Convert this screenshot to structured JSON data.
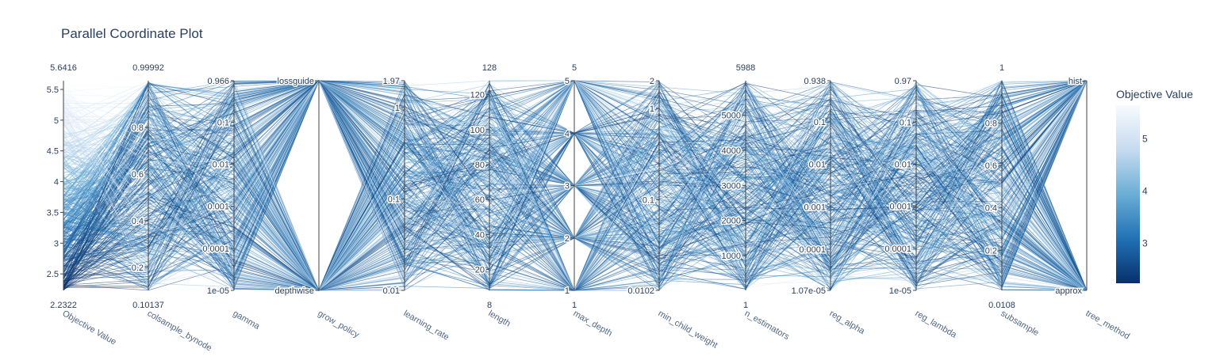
{
  "title": "Parallel Coordinate Plot",
  "chart_data": {
    "type": "parallel_coordinates",
    "title": "Parallel Coordinate Plot",
    "colorscale": "Blues (reversed)",
    "colorbar": {
      "title": "Objective Value",
      "ticks": [
        3,
        4,
        5
      ],
      "range": [
        2.2322,
        5.6416
      ]
    },
    "dimensions": [
      {
        "label": "Objective Value",
        "scale": "linear",
        "range": [
          2.2322,
          5.6416
        ],
        "ticks": [
          "2.5",
          "3",
          "3.5",
          "4",
          "4.5",
          "5",
          "5.5"
        ],
        "tick_values": [
          2.5,
          3,
          3.5,
          4,
          4.5,
          5,
          5.5
        ],
        "min_label": "2.2322",
        "max_label": "5.6416"
      },
      {
        "label": "colsample_bynode",
        "scale": "linear",
        "range": [
          0.10137,
          0.99992
        ],
        "ticks": [
          "0.2",
          "0.4",
          "0.6",
          "0.8"
        ],
        "tick_values": [
          0.2,
          0.4,
          0.6,
          0.8
        ],
        "min_label": "0.10137",
        "max_label": "0.99992"
      },
      {
        "label": "gamma",
        "scale": "log",
        "range": [
          1e-05,
          0.966
        ],
        "ticks": [
          "1e-05",
          "0.0001",
          "0.001",
          "0.01",
          "0.1",
          "0.966"
        ],
        "tick_values": [
          1e-05,
          0.0001,
          0.001,
          0.01,
          0.1,
          0.966
        ],
        "min_label": "",
        "max_label": ""
      },
      {
        "label": "grow_policy",
        "scale": "categorical",
        "categories": [
          "depthwise",
          "lossguide"
        ],
        "ticks": [
          "depthwise",
          "lossguide"
        ],
        "min_label": "",
        "max_label": ""
      },
      {
        "label": "learning_rate",
        "scale": "log",
        "range": [
          0.01,
          1.97
        ],
        "ticks": [
          "0.01",
          "0.1",
          "1",
          "1.97"
        ],
        "tick_values": [
          0.01,
          0.1,
          1,
          1.97
        ],
        "min_label": "",
        "max_label": ""
      },
      {
        "label": "length",
        "scale": "linear",
        "range": [
          8,
          128
        ],
        "ticks": [
          "20",
          "40",
          "60",
          "80",
          "100",
          "120"
        ],
        "tick_values": [
          20,
          40,
          60,
          80,
          100,
          120
        ],
        "min_label": "8",
        "max_label": "128"
      },
      {
        "label": "max_depth",
        "scale": "linear",
        "range": [
          1,
          5
        ],
        "ticks": [
          "1",
          "2",
          "3",
          "4",
          "5"
        ],
        "tick_values": [
          1,
          2,
          3,
          4,
          5
        ],
        "min_label": "1",
        "max_label": "5"
      },
      {
        "label": "min_child_weight",
        "scale": "log",
        "range": [
          0.0102,
          2
        ],
        "ticks": [
          "0.0102",
          "0.1",
          "1",
          "2"
        ],
        "tick_values": [
          0.0102,
          0.1,
          1,
          2
        ],
        "min_label": "",
        "max_label": ""
      },
      {
        "label": "n_estimators",
        "scale": "linear",
        "range": [
          1,
          5988
        ],
        "ticks": [
          "1000",
          "2000",
          "3000",
          "4000",
          "5000"
        ],
        "tick_values": [
          1000,
          2000,
          3000,
          4000,
          5000
        ],
        "min_label": "1",
        "max_label": "5988"
      },
      {
        "label": "reg_alpha",
        "scale": "log",
        "range": [
          1.07e-05,
          0.938
        ],
        "ticks": [
          "1.07e-05",
          "0.0001",
          "0.001",
          "0.01",
          "0.1",
          "0.938"
        ],
        "tick_values": [
          1.07e-05,
          0.0001,
          0.001,
          0.01,
          0.1,
          0.938
        ],
        "min_label": "",
        "max_label": ""
      },
      {
        "label": "reg_lambda",
        "scale": "log",
        "range": [
          1e-05,
          0.97
        ],
        "ticks": [
          "1e-05",
          "0.0001",
          "0.001",
          "0.01",
          "0.1",
          "0.97"
        ],
        "tick_values": [
          1e-05,
          0.0001,
          0.001,
          0.01,
          0.1,
          0.97
        ],
        "min_label": "",
        "max_label": ""
      },
      {
        "label": "subsample",
        "scale": "linear",
        "range": [
          0.0108,
          1
        ],
        "ticks": [
          "0.2",
          "0.4",
          "0.6",
          "0.8"
        ],
        "tick_values": [
          0.2,
          0.4,
          0.6,
          0.8
        ],
        "min_label": "0.0108",
        "max_label": "1"
      },
      {
        "label": "tree_method",
        "scale": "categorical",
        "categories": [
          "approx",
          "hist"
        ],
        "ticks": [
          "approx",
          "hist"
        ],
        "min_label": "",
        "max_label": ""
      }
    ]
  }
}
